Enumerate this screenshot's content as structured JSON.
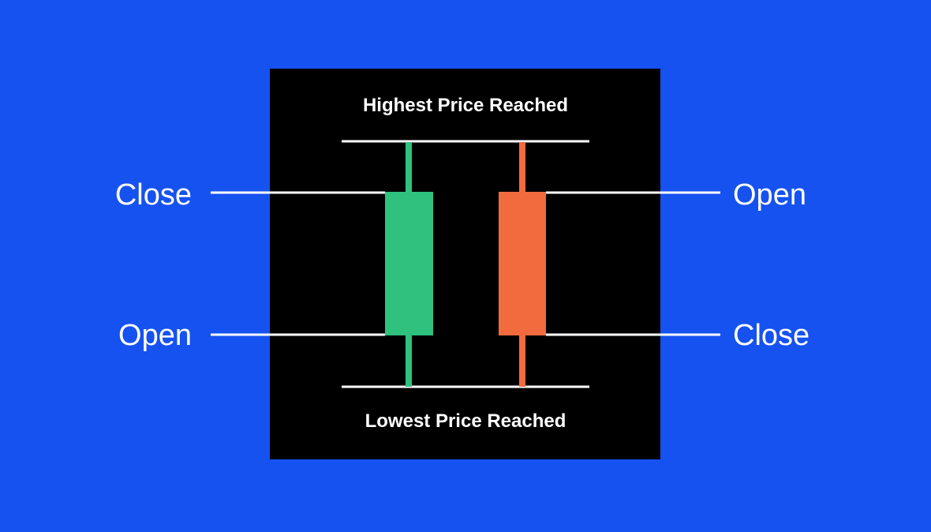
{
  "labels": {
    "top": "Highest Price Reached",
    "bottom": "Lowest Price Reached",
    "left_upper": "Close",
    "left_lower": "Open",
    "right_upper": "Open",
    "right_lower": "Close"
  },
  "colors": {
    "background": "#1652f0",
    "panel": "#000000",
    "bullish": "#2ec27e",
    "bearish": "#f26b3f",
    "lines": "#ffffff"
  }
}
